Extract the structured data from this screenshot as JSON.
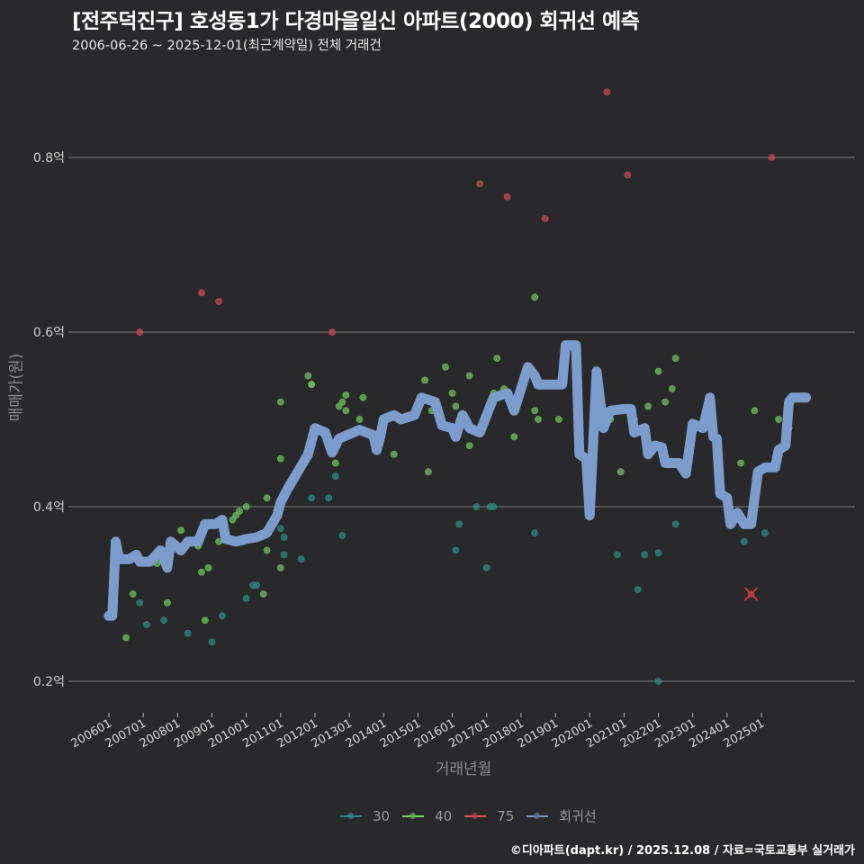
{
  "header": {
    "title": "[전주덕진구] 호성동1가 다경마을일신 아파트(2000) 회귀선 예측",
    "subtitle": "2006-06-26 ~ 2025-12-01(최근계약일) 전체 거래건"
  },
  "axes": {
    "ylabel": "매매가(원)",
    "xlabel": "거래년월"
  },
  "legend": {
    "items": [
      {
        "label": "30",
        "color": "#2a8a7f"
      },
      {
        "label": "40",
        "color": "#7ed36b"
      },
      {
        "label": "75",
        "color": "#e0535f"
      },
      {
        "label": "회귀선",
        "color": "#7b9ccc"
      }
    ]
  },
  "footer": {
    "credit": "©디아파트(dapt.kr) / 2025.12.08 / 자료=국토교통부 실거래가"
  },
  "colors": {
    "background": "#29292b",
    "grid": "#6e6e6e",
    "regression": "#7b9ccc",
    "s30": "#2a8a7f",
    "s40": "#6fbf5e",
    "s75": "#c4485a",
    "highlight_x": "#d83a3a"
  },
  "chart_data": {
    "type": "scatter",
    "title": "[전주덕진구] 호성동1가 다경마을일신 아파트(2000) 회귀선 예측",
    "subtitle": "2006-06-26 ~ 2025-12-01(최근계약일) 전체 거래건",
    "xlabel": "거래년월",
    "ylabel": "매매가(원)",
    "x_ticks": [
      "200601",
      "200701",
      "200801",
      "200901",
      "201001",
      "201101",
      "201201",
      "201301",
      "201401",
      "201501",
      "201601",
      "201701",
      "201801",
      "201901",
      "202001",
      "202101",
      "202201",
      "202301",
      "202401",
      "202501"
    ],
    "y_ticks": [
      "0.2억",
      "0.4억",
      "0.6억",
      "0.8억"
    ],
    "y_tick_values": [
      0.2,
      0.4,
      0.6,
      0.8
    ],
    "ylim": [
      0.17,
      0.9
    ],
    "xlim": [
      2005.8,
      2026.5
    ],
    "grid": "horizontal",
    "legend_position": "bottom",
    "series": [
      {
        "name": "30",
        "type": "scatter",
        "points": [
          [
            2006.9,
            0.29
          ],
          [
            2007.1,
            0.265
          ],
          [
            2007.6,
            0.27
          ],
          [
            2008.3,
            0.255
          ],
          [
            2009.0,
            0.245
          ],
          [
            2009.3,
            0.275
          ],
          [
            2010.0,
            0.295
          ],
          [
            2010.2,
            0.31
          ],
          [
            2010.3,
            0.31
          ],
          [
            2011.0,
            0.375
          ],
          [
            2011.1,
            0.365
          ],
          [
            2011.1,
            0.345
          ],
          [
            2011.6,
            0.34
          ],
          [
            2011.9,
            0.41
          ],
          [
            2012.4,
            0.41
          ],
          [
            2012.6,
            0.435
          ],
          [
            2012.8,
            0.367
          ],
          [
            2016.1,
            0.35
          ],
          [
            2016.2,
            0.38
          ],
          [
            2016.7,
            0.4
          ],
          [
            2017.0,
            0.33
          ],
          [
            2017.1,
            0.4
          ],
          [
            2017.2,
            0.4
          ],
          [
            2018.4,
            0.37
          ],
          [
            2020.8,
            0.345
          ],
          [
            2021.4,
            0.305
          ],
          [
            2021.6,
            0.345
          ],
          [
            2022.0,
            0.347
          ],
          [
            2022.0,
            0.2
          ],
          [
            2022.5,
            0.38
          ],
          [
            2024.5,
            0.36
          ],
          [
            2025.1,
            0.37
          ]
        ]
      },
      {
        "name": "40",
        "type": "scatter",
        "points": [
          [
            2006.5,
            0.25
          ],
          [
            2006.7,
            0.3
          ],
          [
            2007.4,
            0.335
          ],
          [
            2007.7,
            0.29
          ],
          [
            2008.1,
            0.373
          ],
          [
            2008.6,
            0.355
          ],
          [
            2008.7,
            0.325
          ],
          [
            2008.8,
            0.27
          ],
          [
            2008.9,
            0.33
          ],
          [
            2009.2,
            0.36
          ],
          [
            2009.6,
            0.385
          ],
          [
            2009.7,
            0.39
          ],
          [
            2009.8,
            0.395
          ],
          [
            2009.9,
            0.36
          ],
          [
            2010.0,
            0.4
          ],
          [
            2010.5,
            0.3
          ],
          [
            2010.6,
            0.35
          ],
          [
            2010.6,
            0.41
          ],
          [
            2011.0,
            0.33
          ],
          [
            2011.0,
            0.455
          ],
          [
            2011.0,
            0.52
          ],
          [
            2011.8,
            0.55
          ],
          [
            2011.9,
            0.54
          ],
          [
            2011.9,
            0.54
          ],
          [
            2012.6,
            0.45
          ],
          [
            2012.7,
            0.515
          ],
          [
            2012.8,
            0.52
          ],
          [
            2012.9,
            0.528
          ],
          [
            2012.9,
            0.51
          ],
          [
            2013.3,
            0.5
          ],
          [
            2013.4,
            0.525
          ],
          [
            2014.3,
            0.46
          ],
          [
            2015.2,
            0.545
          ],
          [
            2015.3,
            0.44
          ],
          [
            2015.4,
            0.51
          ],
          [
            2015.8,
            0.56
          ],
          [
            2016.0,
            0.53
          ],
          [
            2016.1,
            0.515
          ],
          [
            2016.5,
            0.55
          ],
          [
            2016.5,
            0.47
          ],
          [
            2017.2,
            0.53
          ],
          [
            2017.3,
            0.57
          ],
          [
            2017.5,
            0.535
          ],
          [
            2017.8,
            0.48
          ],
          [
            2018.4,
            0.64
          ],
          [
            2018.4,
            0.51
          ],
          [
            2018.5,
            0.5
          ],
          [
            2019.1,
            0.5
          ],
          [
            2019.6,
            0.53
          ],
          [
            2020.6,
            0.5
          ],
          [
            2020.9,
            0.44
          ],
          [
            2021.3,
            0.5
          ],
          [
            2021.7,
            0.515
          ],
          [
            2022.0,
            0.555
          ],
          [
            2022.2,
            0.52
          ],
          [
            2022.4,
            0.535
          ],
          [
            2022.5,
            0.57
          ],
          [
            2024.4,
            0.45
          ],
          [
            2024.8,
            0.51
          ],
          [
            2025.5,
            0.5
          ],
          [
            2025.8,
            0.49
          ]
        ]
      },
      {
        "name": "75",
        "type": "scatter",
        "points": [
          [
            2006.9,
            0.6
          ],
          [
            2008.7,
            0.645
          ],
          [
            2009.2,
            0.635
          ],
          [
            2012.5,
            0.6
          ],
          [
            2016.8,
            0.77
          ],
          [
            2017.6,
            0.755
          ],
          [
            2018.7,
            0.73
          ],
          [
            2020.5,
            0.875
          ],
          [
            2021.1,
            0.78
          ],
          [
            2025.3,
            0.8
          ]
        ]
      },
      {
        "name": "회귀선",
        "type": "line",
        "points": [
          [
            2006.0,
            0.275
          ],
          [
            2006.1,
            0.275
          ],
          [
            2006.2,
            0.36
          ],
          [
            2006.3,
            0.34
          ],
          [
            2006.6,
            0.34
          ],
          [
            2006.8,
            0.345
          ],
          [
            2006.9,
            0.337
          ],
          [
            2007.2,
            0.337
          ],
          [
            2007.5,
            0.35
          ],
          [
            2007.7,
            0.33
          ],
          [
            2007.8,
            0.36
          ],
          [
            2008.1,
            0.35
          ],
          [
            2008.3,
            0.36
          ],
          [
            2008.6,
            0.36
          ],
          [
            2008.8,
            0.38
          ],
          [
            2009.1,
            0.38
          ],
          [
            2009.3,
            0.385
          ],
          [
            2009.4,
            0.363
          ],
          [
            2009.7,
            0.36
          ],
          [
            2010.0,
            0.363
          ],
          [
            2010.3,
            0.365
          ],
          [
            2010.6,
            0.37
          ],
          [
            2010.9,
            0.39
          ],
          [
            2011.0,
            0.405
          ],
          [
            2011.2,
            0.42
          ],
          [
            2011.5,
            0.44
          ],
          [
            2011.8,
            0.46
          ],
          [
            2012.0,
            0.49
          ],
          [
            2012.3,
            0.485
          ],
          [
            2012.5,
            0.462
          ],
          [
            2012.7,
            0.478
          ],
          [
            2013.0,
            0.483
          ],
          [
            2013.3,
            0.488
          ],
          [
            2013.7,
            0.482
          ],
          [
            2013.8,
            0.465
          ],
          [
            2013.9,
            0.48
          ],
          [
            2014.0,
            0.5
          ],
          [
            2014.3,
            0.505
          ],
          [
            2014.5,
            0.5
          ],
          [
            2014.9,
            0.505
          ],
          [
            2015.1,
            0.525
          ],
          [
            2015.5,
            0.52
          ],
          [
            2015.7,
            0.493
          ],
          [
            2016.0,
            0.49
          ],
          [
            2016.1,
            0.48
          ],
          [
            2016.3,
            0.505
          ],
          [
            2016.5,
            0.49
          ],
          [
            2016.8,
            0.485
          ],
          [
            2017.0,
            0.505
          ],
          [
            2017.2,
            0.525
          ],
          [
            2017.6,
            0.53
          ],
          [
            2017.8,
            0.51
          ],
          [
            2018.0,
            0.535
          ],
          [
            2018.2,
            0.56
          ],
          [
            2018.4,
            0.55
          ],
          [
            2018.5,
            0.54
          ],
          [
            2018.9,
            0.54
          ],
          [
            2019.2,
            0.54
          ],
          [
            2019.3,
            0.585
          ],
          [
            2019.6,
            0.585
          ],
          [
            2019.7,
            0.46
          ],
          [
            2019.9,
            0.455
          ],
          [
            2020.0,
            0.39
          ],
          [
            2020.2,
            0.555
          ],
          [
            2020.4,
            0.49
          ],
          [
            2020.6,
            0.51
          ],
          [
            2021.0,
            0.512
          ],
          [
            2021.2,
            0.512
          ],
          [
            2021.3,
            0.485
          ],
          [
            2021.6,
            0.49
          ],
          [
            2021.7,
            0.46
          ],
          [
            2021.9,
            0.47
          ],
          [
            2022.1,
            0.468
          ],
          [
            2022.2,
            0.45
          ],
          [
            2022.6,
            0.45
          ],
          [
            2022.8,
            0.438
          ],
          [
            2023.0,
            0.495
          ],
          [
            2023.3,
            0.49
          ],
          [
            2023.5,
            0.525
          ],
          [
            2023.6,
            0.48
          ],
          [
            2023.7,
            0.478
          ],
          [
            2023.8,
            0.415
          ],
          [
            2024.0,
            0.41
          ],
          [
            2024.1,
            0.38
          ],
          [
            2024.3,
            0.393
          ],
          [
            2024.5,
            0.38
          ],
          [
            2024.7,
            0.38
          ],
          [
            2024.9,
            0.44
          ],
          [
            2025.1,
            0.445
          ],
          [
            2025.4,
            0.445
          ],
          [
            2025.5,
            0.465
          ],
          [
            2025.7,
            0.47
          ],
          [
            2025.8,
            0.52
          ],
          [
            2025.9,
            0.525
          ],
          [
            2026.3,
            0.525
          ]
        ]
      },
      {
        "name": "highlight",
        "type": "marker-x",
        "points": [
          [
            2024.7,
            0.3
          ]
        ]
      }
    ]
  }
}
